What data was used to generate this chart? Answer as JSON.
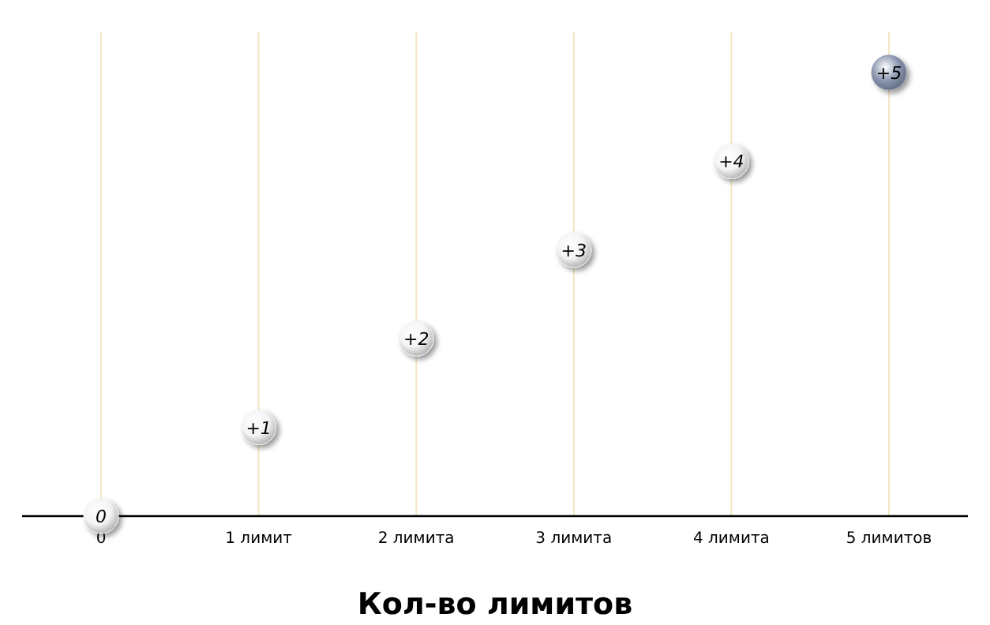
{
  "chart_data": {
    "type": "scatter",
    "xlabel": "Кол-во лимитов",
    "categories": [
      "0",
      "1 лимит",
      "2 лимита",
      "3 лимита",
      "4 лимита",
      "5 лимитов"
    ],
    "values": [
      0,
      1,
      2,
      3,
      4,
      5
    ],
    "value_labels": [
      "0",
      "+1",
      "+2",
      "+3",
      "+4",
      "+5"
    ],
    "colors": [
      "#f4f4f4",
      "#f4f4f4",
      "#f4f4f4",
      "#f4f4f4",
      "#f4f4f4",
      "#8a96b0"
    ],
    "grid": "x",
    "marker": "circle"
  }
}
